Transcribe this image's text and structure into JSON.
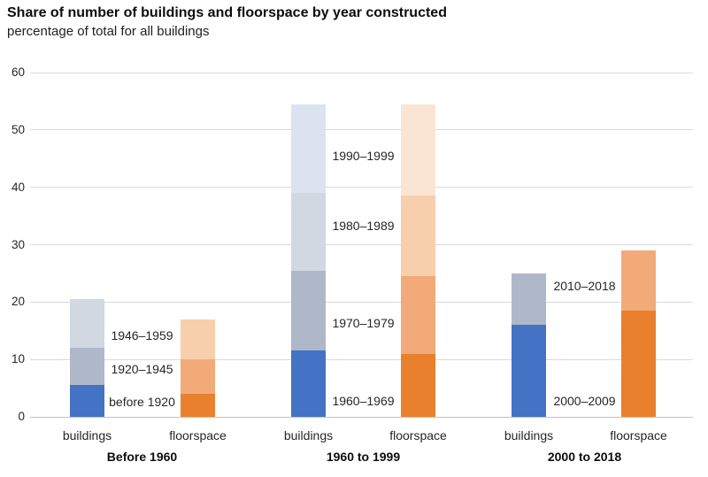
{
  "colors": {
    "palettes": {
      "blue": [
        "#4472c4",
        "#aeb8c9",
        "#d2d8e2",
        "#dbe3f1"
      ],
      "orange": [
        "#e8802e",
        "#f3aa79",
        "#f7cfad",
        "#fae5d4"
      ]
    },
    "gridline": "#dadada",
    "axis_line": "#c4c4c4",
    "text": "#262626"
  },
  "chart_data": {
    "type": "bar",
    "stacked": true,
    "title": "Share of number of buildings and floorspace by year constructed",
    "subtitle": "percentage of total for all buildings",
    "xlabel": "",
    "ylabel": "",
    "ylim": [
      0,
      60
    ],
    "yticks": [
      0,
      10,
      20,
      30,
      40,
      50,
      60
    ],
    "grid": true,
    "legend_position": "inline-segment-labels",
    "groups": [
      {
        "label": "Before 1960",
        "bars": [
          {
            "category": "buildings",
            "palette": "blue",
            "segments": [
              {
                "name": "before 1920",
                "value": 5.5
              },
              {
                "name": "1920–1945",
                "value": 6.5
              },
              {
                "name": "1946–1959",
                "value": 8.5
              }
            ]
          },
          {
            "category": "floorspace",
            "palette": "orange",
            "segments": [
              {
                "name": "before 1920",
                "value": 4
              },
              {
                "name": "1920–1945",
                "value": 6
              },
              {
                "name": "1946–1959",
                "value": 7
              }
            ]
          }
        ],
        "inline_labels": [
          {
            "text": "1946–1959",
            "axis_y": 14.2
          },
          {
            "text": "1920–1945",
            "axis_y": 8.3
          },
          {
            "text": "before 1920",
            "axis_y": 2.6
          }
        ]
      },
      {
        "label": "1960 to 1999",
        "bars": [
          {
            "category": "buildings",
            "palette": "blue",
            "segments": [
              {
                "name": "1960–1969",
                "value": 11.5
              },
              {
                "name": "1970–1979",
                "value": 14
              },
              {
                "name": "1980–1989",
                "value": 13.5
              },
              {
                "name": "1990–1999",
                "value": 15.5
              }
            ]
          },
          {
            "category": "floorspace",
            "palette": "orange",
            "segments": [
              {
                "name": "1960–1969",
                "value": 11
              },
              {
                "name": "1970–1979",
                "value": 13.5
              },
              {
                "name": "1980–1989",
                "value": 14
              },
              {
                "name": "1990–1999",
                "value": 16
              }
            ]
          }
        ],
        "inline_labels": [
          {
            "text": "1990–1999",
            "axis_y": 45.5
          },
          {
            "text": "1980–1989",
            "axis_y": 33.3
          },
          {
            "text": "1970–1979",
            "axis_y": 16.3
          },
          {
            "text": "1960–1969",
            "axis_y": 2.8
          }
        ]
      },
      {
        "label": "2000 to 2018",
        "bars": [
          {
            "category": "buildings",
            "palette": "blue",
            "segments": [
              {
                "name": "2000–2009",
                "value": 16
              },
              {
                "name": "2010–2018",
                "value": 9
              }
            ]
          },
          {
            "category": "floorspace",
            "palette": "orange",
            "segments": [
              {
                "name": "2000–2009",
                "value": 18.5
              },
              {
                "name": "2010–2018",
                "value": 10.5
              }
            ]
          }
        ],
        "inline_labels": [
          {
            "text": "2010–2018",
            "axis_y": 22.8
          },
          {
            "text": "2000–2009",
            "axis_y": 2.8
          }
        ]
      }
    ]
  }
}
